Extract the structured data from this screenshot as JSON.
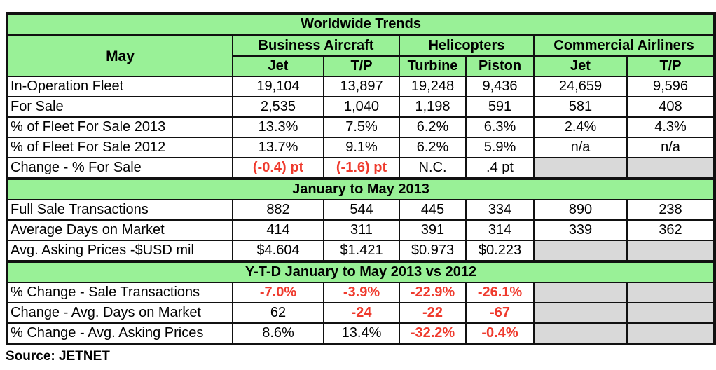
{
  "title": "Worldwide Trends",
  "row_header": "May",
  "groups": [
    "Business Aircraft",
    "Helicopters",
    "Commercial Airliners"
  ],
  "subheaders": [
    "Jet",
    "T/P",
    "Turbine",
    "Piston",
    "Jet",
    "T/P"
  ],
  "colors": {
    "header_green": "#99f197",
    "negative_red": "#ef3a2d",
    "na_gray": "#d9d9d9"
  },
  "sections": [
    {
      "rows": [
        {
          "label": "In-Operation Fleet",
          "cells": [
            {
              "text": "19,104"
            },
            {
              "text": "13,897"
            },
            {
              "text": "19,248"
            },
            {
              "text": "9,436"
            },
            {
              "text": "24,659"
            },
            {
              "text": "9,596"
            }
          ]
        },
        {
          "label": "For Sale",
          "cells": [
            {
              "text": "2,535"
            },
            {
              "text": "1,040"
            },
            {
              "text": "1,198"
            },
            {
              "text": "591"
            },
            {
              "text": "581"
            },
            {
              "text": "408"
            }
          ]
        },
        {
          "label": "% of Fleet For Sale 2013",
          "cells": [
            {
              "text": "13.3%"
            },
            {
              "text": "7.5%"
            },
            {
              "text": "6.2%"
            },
            {
              "text": "6.3%"
            },
            {
              "text": "2.4%"
            },
            {
              "text": "4.3%"
            }
          ]
        },
        {
          "label": "% of Fleet For Sale 2012",
          "cells": [
            {
              "text": "13.7%"
            },
            {
              "text": "9.1%"
            },
            {
              "text": "6.2%"
            },
            {
              "text": "5.9%"
            },
            {
              "text": "n/a"
            },
            {
              "text": "n/a"
            }
          ]
        },
        {
          "label": "Change - % For Sale",
          "cells": [
            {
              "text": "(-0.4) pt",
              "style": "neg"
            },
            {
              "text": "(-1.6) pt",
              "style": "neg"
            },
            {
              "text": "N.C."
            },
            {
              "text": ".4 pt"
            },
            {
              "style": "gray"
            },
            {
              "style": "gray"
            }
          ]
        }
      ]
    },
    {
      "heading": "January to May 2013",
      "rows": [
        {
          "label": "Full Sale Transactions",
          "cells": [
            {
              "text": "882"
            },
            {
              "text": "544"
            },
            {
              "text": "445"
            },
            {
              "text": "334"
            },
            {
              "text": "890"
            },
            {
              "text": "238"
            }
          ]
        },
        {
          "label": "Average Days on Market",
          "cells": [
            {
              "text": "414"
            },
            {
              "text": "311"
            },
            {
              "text": "391"
            },
            {
              "text": "314"
            },
            {
              "text": "339"
            },
            {
              "text": "362"
            }
          ]
        },
        {
          "label": "Avg. Asking Prices -$USD mil",
          "cells": [
            {
              "text": "$4.604"
            },
            {
              "text": "$1.421"
            },
            {
              "text": "$0.973"
            },
            {
              "text": "$0.223"
            },
            {
              "style": "gray"
            },
            {
              "style": "gray"
            }
          ]
        }
      ]
    },
    {
      "heading": "Y-T-D January to May 2013 vs 2012",
      "rows": [
        {
          "label": "% Change  - Sale Transactions",
          "cells": [
            {
              "text": "-7.0%",
              "style": "neg"
            },
            {
              "text": "-3.9%",
              "style": "neg"
            },
            {
              "text": "-22.9%",
              "style": "neg"
            },
            {
              "text": "-26.1%",
              "style": "neg"
            },
            {
              "style": "gray"
            },
            {
              "style": "gray"
            }
          ]
        },
        {
          "label": "Change -  Avg. Days on Market",
          "cells": [
            {
              "text": "62"
            },
            {
              "text": "-24",
              "style": "neg"
            },
            {
              "text": "-22",
              "style": "neg"
            },
            {
              "text": "-67",
              "style": "neg"
            },
            {
              "style": "gray"
            },
            {
              "style": "gray"
            }
          ]
        },
        {
          "label": "% Change - Avg. Asking Prices",
          "cells": [
            {
              "text": "8.6%"
            },
            {
              "text": "13.4%"
            },
            {
              "text": "-32.2%",
              "style": "neg"
            },
            {
              "text": "-0.4%",
              "style": "neg"
            },
            {
              "style": "gray"
            },
            {
              "style": "gray"
            }
          ]
        }
      ]
    }
  ],
  "source": "Source: JETNET"
}
